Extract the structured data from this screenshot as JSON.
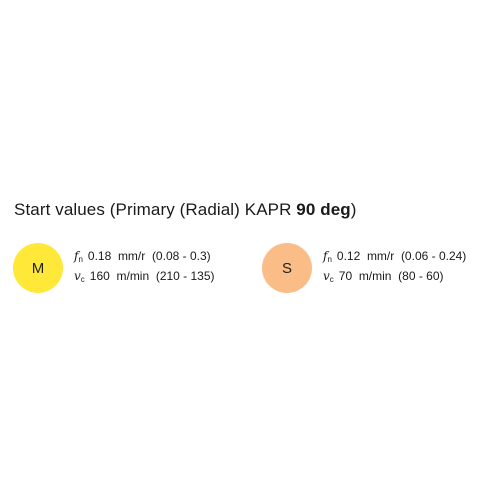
{
  "title": {
    "main": "Start values  (Primary (Radial) KAPR ",
    "angle": "90 deg",
    "close": ")"
  },
  "materials": [
    {
      "letter": "M",
      "color": "#ffe838",
      "feed_symbol": "f",
      "feed_sub": "n",
      "feed_value": "0.18",
      "feed_unit": "mm/r",
      "feed_range": "(0.08 - 0.3)",
      "speed_symbol": "v",
      "speed_sub": "c",
      "speed_value": "160",
      "speed_unit": "m/min",
      "speed_range": "(210 - 135)"
    },
    {
      "letter": "S",
      "color": "#fbbd87",
      "feed_symbol": "f",
      "feed_sub": "n",
      "feed_value": "0.12",
      "feed_unit": "mm/r",
      "feed_range": "(0.06 - 0.24)",
      "speed_symbol": "v",
      "speed_sub": "c",
      "speed_value": "70",
      "speed_unit": "m/min",
      "speed_range": "(80 - 60)"
    }
  ]
}
